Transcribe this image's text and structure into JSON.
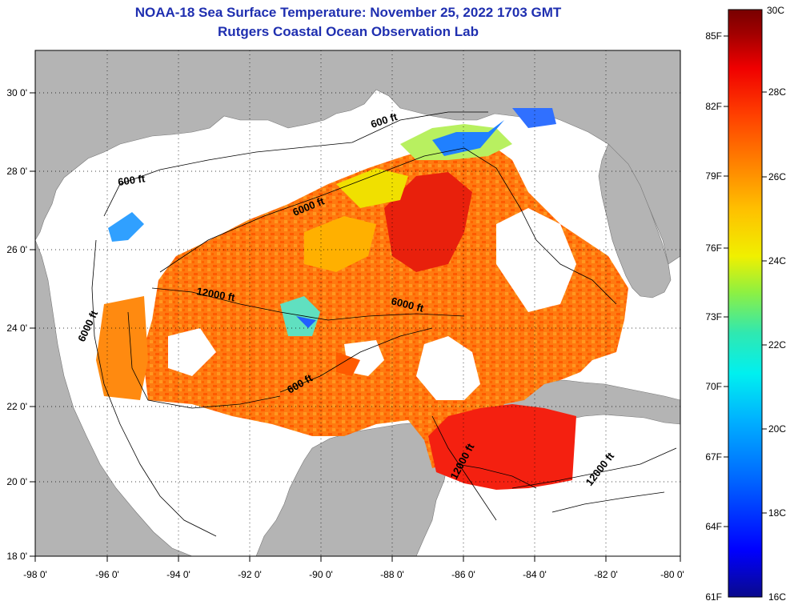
{
  "header": {
    "title": "NOAA-18 Sea Surface Temperature:  November 25, 2022 1703 GMT",
    "subtitle": "Rutgers Coastal Ocean Observation Lab"
  },
  "axes": {
    "lon_ticks": [
      "-98 0'",
      "-96 0'",
      "-94 0'",
      "-92 0'",
      "-90 0'",
      "-88 0'",
      "-86 0'",
      "-84 0'",
      "-82 0'",
      "-80 0'"
    ],
    "lat_ticks": [
      "30 0'",
      "28 0'",
      "26 0'",
      "24 0'",
      "22 0'",
      "20 0'",
      "18 0'"
    ]
  },
  "colorbar": {
    "fahrenheit_labels": [
      "85F",
      "82F",
      "79F",
      "76F",
      "73F",
      "70F",
      "67F",
      "64F",
      "61F"
    ],
    "celsius_labels": [
      "30C",
      "28C",
      "26C",
      "24C",
      "22C",
      "20C",
      "18C",
      "16C"
    ],
    "range_c": [
      16,
      30
    ],
    "colors": [
      "#0a0a8c",
      "#0000ff",
      "#0066ff",
      "#00b0ff",
      "#00f0f0",
      "#30e8b0",
      "#90f040",
      "#f0f000",
      "#ffc000",
      "#ff8000",
      "#ff4000",
      "#f00000",
      "#a00000",
      "#780000"
    ]
  },
  "contours": {
    "labels": [
      "600 ft",
      "600 ft",
      "6000 ft",
      "12000 ft",
      "6000 ft",
      "6000 ft",
      "600 ft",
      "12000 ft",
      "12000 ft"
    ]
  },
  "colors": {
    "land": "#b4b4b4",
    "ocean_nodata": "#ffffff",
    "title": "#1f2fb0"
  }
}
